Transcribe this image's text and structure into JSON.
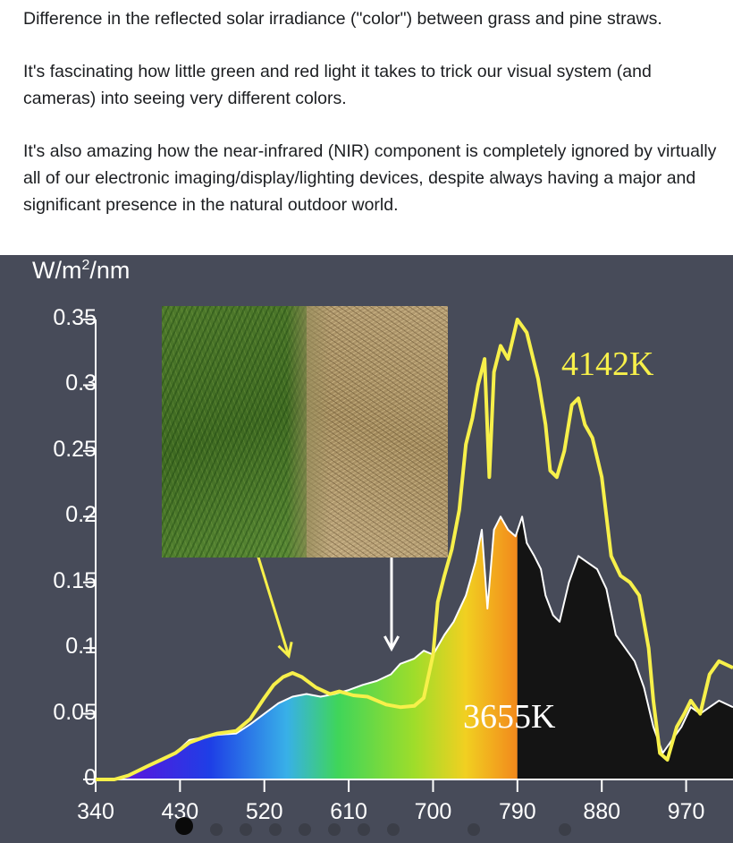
{
  "post": {
    "paragraph_1": "Difference in the reflected solar irradiance (\"color\") between grass and pine straws.",
    "paragraph_2": "It's fascinating how little green and red light it takes to trick our visual system (and cameras) into seeing very different colors.",
    "paragraph_3": "It's also amazing how the near-infrared (NIR) component is completely ignored by virtually all of our electronic imaging/display/lighting devices, despite always having a major and significant presence in the natural outdoor world."
  },
  "figure": {
    "unit_base": "W/m",
    "unit_sup": "2",
    "unit_tail": "/nm",
    "label_yellow": "4142K",
    "label_white": "3655K",
    "photo_icon": "grass-and-pine-straw-photo",
    "colors": {
      "background": "#474b59",
      "yellow": "#f7f04a",
      "white": "#ffffff"
    }
  },
  "chart_data": {
    "type": "line",
    "xlabel": "",
    "ylabel": "W/m²/nm",
    "xlim": [
      340,
      1020
    ],
    "ylim": [
      0,
      0.35
    ],
    "x_ticks": [
      "340",
      "430",
      "520",
      "610",
      "700",
      "790",
      "880",
      "970"
    ],
    "y_ticks": [
      "0",
      "0.05",
      "0.1",
      "0.15",
      "0.2",
      "0.25",
      "0.3",
      "0.35"
    ],
    "series": [
      {
        "name": "4142K",
        "color": "#f7f04a",
        "x": [
          340,
          360,
          375,
          395,
          410,
          425,
          440,
          455,
          470,
          490,
          505,
          520,
          530,
          540,
          550,
          560,
          575,
          590,
          600,
          615,
          630,
          650,
          665,
          680,
          690,
          700,
          705,
          712,
          720,
          728,
          735,
          742,
          748,
          755,
          760,
          765,
          772,
          780,
          790,
          800,
          812,
          820,
          825,
          832,
          840,
          848,
          855,
          862,
          870,
          880,
          890,
          900,
          910,
          920,
          925,
          930,
          935,
          942,
          950,
          960,
          968,
          975,
          985,
          995,
          1005,
          1020
        ],
        "y": [
          0.0,
          0.0,
          0.003,
          0.01,
          0.015,
          0.02,
          0.028,
          0.032,
          0.035,
          0.037,
          0.046,
          0.062,
          0.072,
          0.078,
          0.081,
          0.078,
          0.07,
          0.065,
          0.067,
          0.064,
          0.063,
          0.057,
          0.055,
          0.056,
          0.062,
          0.095,
          0.135,
          0.155,
          0.175,
          0.205,
          0.255,
          0.275,
          0.3,
          0.32,
          0.23,
          0.31,
          0.33,
          0.32,
          0.35,
          0.34,
          0.305,
          0.27,
          0.235,
          0.23,
          0.25,
          0.285,
          0.29,
          0.27,
          0.26,
          0.23,
          0.17,
          0.155,
          0.15,
          0.14,
          0.12,
          0.1,
          0.06,
          0.02,
          0.015,
          0.04,
          0.05,
          0.06,
          0.05,
          0.08,
          0.09,
          0.085
        ]
      },
      {
        "name": "3655K",
        "color": "#ffffff",
        "x": [
          340,
          360,
          375,
          395,
          410,
          425,
          440,
          455,
          470,
          490,
          505,
          520,
          535,
          550,
          565,
          580,
          595,
          610,
          625,
          640,
          655,
          665,
          680,
          690,
          700,
          712,
          722,
          735,
          745,
          752,
          758,
          765,
          772,
          780,
          788,
          795,
          800,
          808,
          815,
          820,
          828,
          835,
          845,
          855,
          865,
          875,
          885,
          895,
          905,
          915,
          925,
          935,
          945,
          955,
          965,
          975,
          985,
          995,
          1005,
          1020
        ],
        "y": [
          0.0,
          0.0,
          0.003,
          0.01,
          0.015,
          0.02,
          0.03,
          0.032,
          0.034,
          0.035,
          0.042,
          0.05,
          0.058,
          0.063,
          0.065,
          0.063,
          0.065,
          0.068,
          0.072,
          0.075,
          0.08,
          0.088,
          0.092,
          0.098,
          0.095,
          0.11,
          0.12,
          0.14,
          0.165,
          0.19,
          0.13,
          0.19,
          0.2,
          0.19,
          0.185,
          0.2,
          0.18,
          0.17,
          0.16,
          0.14,
          0.125,
          0.12,
          0.15,
          0.17,
          0.165,
          0.16,
          0.145,
          0.11,
          0.1,
          0.09,
          0.07,
          0.04,
          0.02,
          0.03,
          0.04,
          0.055,
          0.05,
          0.055,
          0.06,
          0.055
        ]
      }
    ],
    "annotations": [
      "4142K",
      "3655K"
    ],
    "grid": false,
    "legend": "none"
  }
}
